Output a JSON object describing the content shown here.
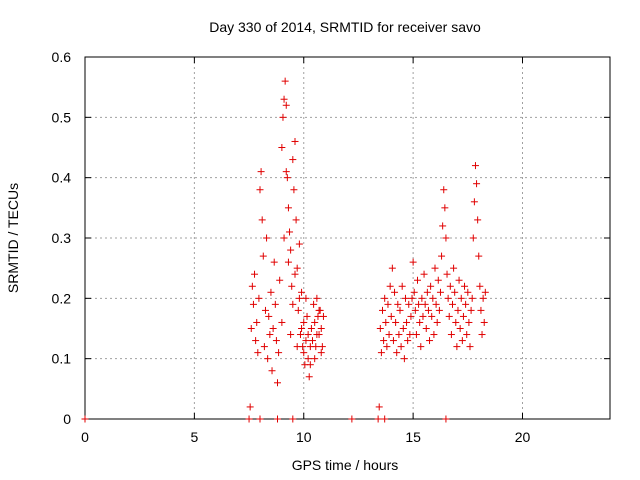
{
  "chart_data": {
    "type": "scatter",
    "title": "Day 330 of 2014, SRMTID for receiver savo",
    "xlabel": "GPS time / hours",
    "ylabel": "SRMTID / TECUs",
    "xlim": [
      0,
      24
    ],
    "ylim": [
      0,
      0.6
    ],
    "xticks": [
      0,
      5,
      10,
      15,
      20
    ],
    "xtick_labels": [
      "0",
      "5",
      "10",
      "15",
      "20"
    ],
    "yticks": [
      0,
      0.1,
      0.2,
      0.3,
      0.4,
      0.5,
      0.6
    ],
    "ytick_labels": [
      "0",
      "0.1",
      "0.2",
      "0.3",
      "0.4",
      "0.5",
      "0.6"
    ],
    "grid": true,
    "marker": "+",
    "color": "#e00000",
    "series": [
      {
        "name": "savo",
        "points": [
          [
            0.0,
            0.0
          ],
          [
            7.5,
            0.0
          ],
          [
            7.55,
            0.02
          ],
          [
            7.6,
            0.15
          ],
          [
            7.65,
            0.22
          ],
          [
            7.7,
            0.19
          ],
          [
            7.75,
            0.24
          ],
          [
            7.8,
            0.13
          ],
          [
            7.85,
            0.16
          ],
          [
            7.9,
            0.11
          ],
          [
            7.95,
            0.2
          ],
          [
            8.0,
            0.38
          ],
          [
            8.05,
            0.41
          ],
          [
            8.1,
            0.33
          ],
          [
            8.15,
            0.27
          ],
          [
            8.2,
            0.12
          ],
          [
            8.25,
            0.18
          ],
          [
            8.3,
            0.3
          ],
          [
            8.35,
            0.1
          ],
          [
            8.4,
            0.17
          ],
          [
            8.45,
            0.14
          ],
          [
            8.5,
            0.21
          ],
          [
            8.55,
            0.08
          ],
          [
            8.6,
            0.15
          ],
          [
            8.65,
            0.26
          ],
          [
            8.7,
            0.19
          ],
          [
            8.75,
            0.13
          ],
          [
            8.8,
            0.06
          ],
          [
            8.85,
            0.11
          ],
          [
            8.9,
            0.23
          ],
          [
            8.0,
            0.0
          ],
          [
            8.8,
            0.0
          ],
          [
            9.0,
            0.45
          ],
          [
            9.05,
            0.5
          ],
          [
            9.1,
            0.53
          ],
          [
            9.15,
            0.56
          ],
          [
            9.2,
            0.52
          ],
          [
            9.25,
            0.4
          ],
          [
            9.3,
            0.35
          ],
          [
            9.35,
            0.31
          ],
          [
            9.4,
            0.28
          ],
          [
            9.45,
            0.22
          ],
          [
            9.5,
            0.43
          ],
          [
            9.55,
            0.38
          ],
          [
            9.6,
            0.46
          ],
          [
            9.65,
            0.33
          ],
          [
            9.7,
            0.25
          ],
          [
            9.75,
            0.18
          ],
          [
            9.8,
            0.29
          ],
          [
            9.85,
            0.14
          ],
          [
            9.9,
            0.21
          ],
          [
            9.95,
            0.12
          ],
          [
            10.0,
            0.16
          ],
          [
            10.05,
            0.09
          ],
          [
            10.1,
            0.13
          ],
          [
            10.15,
            0.17
          ],
          [
            10.2,
            0.1
          ],
          [
            10.25,
            0.07
          ],
          [
            10.3,
            0.12
          ],
          [
            10.35,
            0.15
          ],
          [
            9.0,
            0.16
          ],
          [
            9.1,
            0.3
          ],
          [
            9.2,
            0.41
          ],
          [
            9.3,
            0.26
          ],
          [
            9.4,
            0.14
          ],
          [
            9.5,
            0.19
          ],
          [
            9.6,
            0.24
          ],
          [
            9.7,
            0.12
          ],
          [
            9.8,
            0.2
          ],
          [
            9.9,
            0.15
          ],
          [
            10.0,
            0.11
          ],
          [
            10.1,
            0.2
          ],
          [
            10.2,
            0.14
          ],
          [
            10.3,
            0.09
          ],
          [
            9.5,
            0.0
          ],
          [
            10.4,
            0.13
          ],
          [
            10.45,
            0.19
          ],
          [
            10.5,
            0.16
          ],
          [
            10.55,
            0.12
          ],
          [
            10.6,
            0.2
          ],
          [
            10.65,
            0.17
          ],
          [
            10.7,
            0.14
          ],
          [
            10.75,
            0.18
          ],
          [
            10.8,
            0.15
          ],
          [
            10.85,
            0.12
          ],
          [
            10.9,
            0.17
          ],
          [
            10.5,
            0.1
          ],
          [
            10.6,
            0.14
          ],
          [
            10.7,
            0.18
          ],
          [
            10.8,
            0.11
          ],
          [
            12.2,
            0.0
          ],
          [
            13.4,
            0.0
          ],
          [
            13.45,
            0.02
          ],
          [
            13.7,
            0.0
          ],
          [
            13.5,
            0.15
          ],
          [
            13.55,
            0.11
          ],
          [
            13.6,
            0.18
          ],
          [
            13.65,
            0.13
          ],
          [
            13.7,
            0.2
          ],
          [
            13.75,
            0.16
          ],
          [
            13.8,
            0.12
          ],
          [
            13.85,
            0.19
          ],
          [
            13.9,
            0.14
          ],
          [
            13.95,
            0.22
          ],
          [
            14.0,
            0.17
          ],
          [
            14.05,
            0.25
          ],
          [
            14.1,
            0.13
          ],
          [
            14.15,
            0.21
          ],
          [
            14.2,
            0.16
          ],
          [
            14.25,
            0.11
          ],
          [
            14.3,
            0.19
          ],
          [
            14.35,
            0.14
          ],
          [
            14.4,
            0.18
          ],
          [
            14.45,
            0.12
          ],
          [
            14.5,
            0.22
          ],
          [
            14.55,
            0.15
          ],
          [
            14.6,
            0.1
          ],
          [
            14.65,
            0.2
          ],
          [
            14.7,
            0.16
          ],
          [
            14.75,
            0.13
          ],
          [
            14.8,
            0.19
          ],
          [
            14.85,
            0.14
          ],
          [
            14.9,
            0.17
          ],
          [
            14.95,
            0.2
          ],
          [
            15.0,
            0.26
          ],
          [
            15.05,
            0.21
          ],
          [
            15.1,
            0.18
          ],
          [
            15.15,
            0.14
          ],
          [
            15.2,
            0.23
          ],
          [
            15.25,
            0.19
          ],
          [
            15.3,
            0.16
          ],
          [
            15.35,
            0.12
          ],
          [
            15.4,
            0.2
          ],
          [
            15.45,
            0.17
          ],
          [
            15.5,
            0.24
          ],
          [
            15.55,
            0.19
          ],
          [
            15.6,
            0.15
          ],
          [
            15.65,
            0.21
          ],
          [
            15.7,
            0.18
          ],
          [
            15.75,
            0.13
          ],
          [
            15.8,
            0.22
          ],
          [
            15.85,
            0.17
          ],
          [
            15.9,
            0.2
          ],
          [
            15.95,
            0.14
          ],
          [
            16.0,
            0.25
          ],
          [
            16.05,
            0.19
          ],
          [
            16.1,
            0.16
          ],
          [
            16.15,
            0.23
          ],
          [
            16.2,
            0.18
          ],
          [
            16.25,
            0.21
          ],
          [
            16.3,
            0.27
          ],
          [
            16.35,
            0.32
          ],
          [
            16.4,
            0.38
          ],
          [
            16.45,
            0.35
          ],
          [
            16.5,
            0.3
          ],
          [
            16.55,
            0.24
          ],
          [
            16.6,
            0.2
          ],
          [
            16.65,
            0.17
          ],
          [
            16.7,
            0.22
          ],
          [
            16.75,
            0.14
          ],
          [
            16.8,
            0.19
          ],
          [
            16.85,
            0.25
          ],
          [
            16.9,
            0.21
          ],
          [
            16.95,
            0.16
          ],
          [
            17.0,
            0.12
          ],
          [
            17.05,
            0.18
          ],
          [
            17.1,
            0.23
          ],
          [
            17.15,
            0.15
          ],
          [
            17.2,
            0.2
          ],
          [
            17.25,
            0.13
          ],
          [
            17.3,
            0.17
          ],
          [
            17.35,
            0.22
          ],
          [
            17.4,
            0.19
          ],
          [
            17.45,
            0.14
          ],
          [
            17.5,
            0.21
          ],
          [
            17.55,
            0.16
          ],
          [
            17.6,
            0.12
          ],
          [
            17.65,
            0.18
          ],
          [
            17.7,
            0.2
          ],
          [
            17.75,
            0.3
          ],
          [
            17.8,
            0.36
          ],
          [
            17.85,
            0.42
          ],
          [
            17.9,
            0.39
          ],
          [
            17.95,
            0.33
          ],
          [
            18.0,
            0.27
          ],
          [
            18.05,
            0.22
          ],
          [
            18.1,
            0.18
          ],
          [
            18.15,
            0.14
          ],
          [
            18.2,
            0.2
          ],
          [
            18.25,
            0.16
          ],
          [
            18.3,
            0.21
          ],
          [
            16.5,
            0.0
          ]
        ]
      }
    ]
  }
}
